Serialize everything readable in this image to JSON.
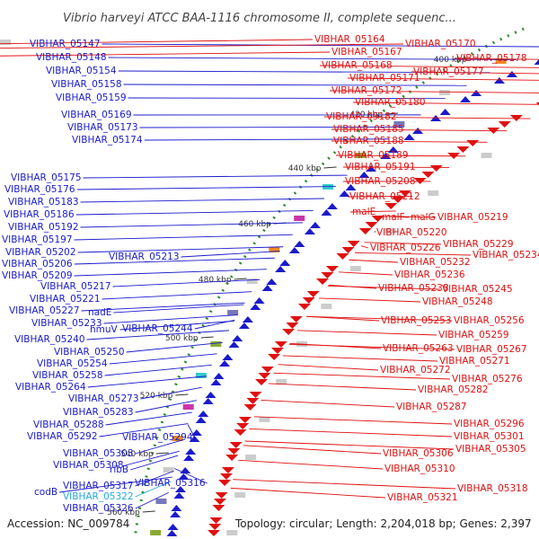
{
  "title": "Vibrio harveyi ATCC BAA-1116 chromosome II, complete sequenc...",
  "footer": {
    "accession": "Accession: NC_009784",
    "topology": "Topology: circular; Length: 2,204,018 bp; Genes: 2,397"
  },
  "ticks": [
    "400 kbp",
    "420 kbp",
    "440 kbp",
    "460 kbp",
    "480 kbp",
    "500 kbp",
    "520 kbp",
    "540 kbp",
    "560 kbp"
  ],
  "left_labels": [
    "VIBHAR_05147",
    "VIBHAR_05148",
    "VIBHAR_05154",
    "VIBHAR_05158",
    "VIBHAR_05159",
    "VIBHAR_05169",
    "VIBHAR_05173",
    "VIBHAR_05174",
    "VIBHAR_05175",
    "VIBHAR_05176",
    "VIBHAR_05183",
    "VIBHAR_05186",
    "VIBHAR_05192",
    "VIBHAR_05197",
    "VIBHAR_05202",
    "VIBHAR_05206",
    "VIBHAR_05209",
    "VIBHAR_05213",
    "VIBHAR_05217",
    "VIBHAR_05221",
    "nadE",
    "VIBHAR_05227",
    "VIBHAR_05233",
    "hmuV",
    "VIBHAR_05244",
    "VIBHAR_05240",
    "VIBHAR_05250",
    "VIBHAR_05254",
    "VIBHAR_05258",
    "VIBHAR_05264",
    "VIBHAR_05273",
    "VIBHAR_05283",
    "VIBHAR_05288",
    "VIBHAR_05292",
    "VIBHAR_05294",
    "VIBHAR_05303",
    "VIBHAR_05308",
    "ribB",
    "VIBHAR_05316",
    "VIBHAR_05317",
    "codB",
    "VIBHAR_05322",
    "VIBHAR_05326"
  ],
  "right_labels": [
    "VIBHAR_05164",
    "VIBHAR_05170",
    "VIBHAR_05167",
    "VIBHAR_05178",
    "VIBHAR_05168",
    "VIBHAR_05177",
    "VIBHAR_05171",
    "VIBHAR_05172",
    "VIBHAR_05180",
    "VIBHAR_05182",
    "VIBHAR_05185",
    "VIBHAR_05188",
    "VIBHAR_05189",
    "VIBHAR_05191",
    "VIBHAR_05208",
    "VIBHAR_05212",
    "malE",
    "malF",
    "malG",
    "VIBHAR_05219",
    "VIBHAR_05220",
    "VIBHAR_05229",
    "VIBHAR_05226",
    "VIBHAR_05234",
    "VIBHAR_05232",
    "VIBHAR_05236",
    "VIBHAR_05238",
    "VIBHAR_05245",
    "VIBHAR_05248",
    "VIBHAR_05253",
    "VIBHAR_05256",
    "VIBHAR_05259",
    "VIBHAR_05263",
    "VIBHAR_05267",
    "VIBHAR_05271",
    "VIBHAR_05272",
    "VIBHAR_05276",
    "VIBHAR_05282",
    "VIBHAR_05287",
    "VIBHAR_05296",
    "VIBHAR_05301",
    "VIBHAR_05306",
    "VIBHAR_05305",
    "VIBHAR_05310",
    "VIBHAR_05318",
    "VIBHAR_05321"
  ],
  "colors": {
    "forward_strand": "#1a1acc",
    "reverse_strand": "#e01010",
    "highlight": "#22aadd",
    "backbone": "#888888",
    "gc_track": "#2e8b2e"
  }
}
